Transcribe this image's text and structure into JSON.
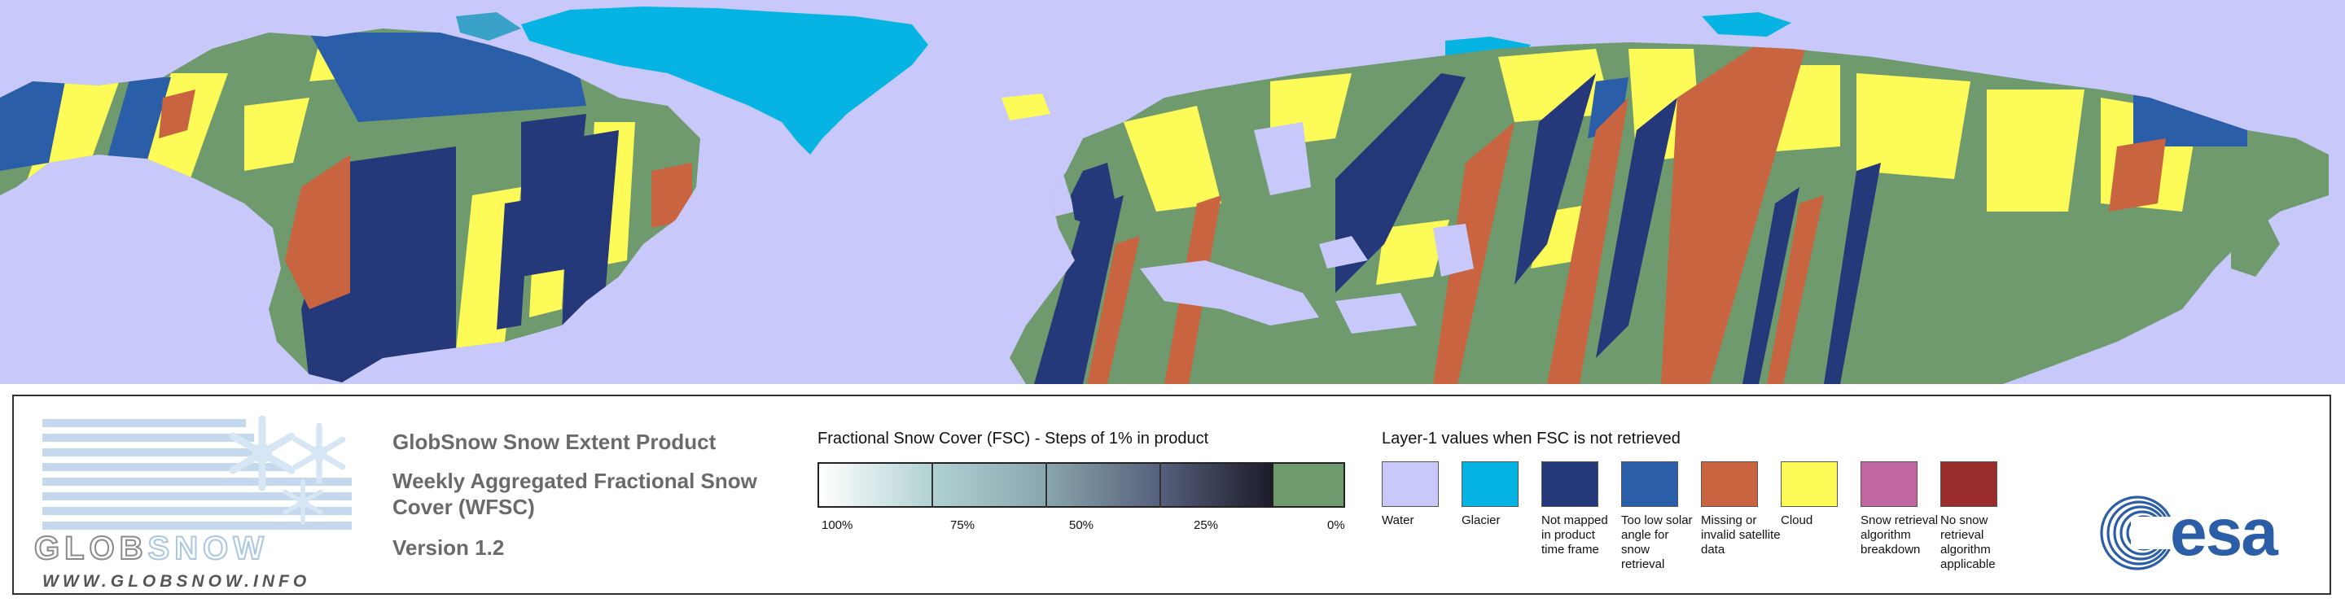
{
  "map": {
    "colors": {
      "water": "#c8c8fa",
      "glacier": "#06b4e4",
      "not_mapped": "#25387a",
      "low_solar": "#2a5ea8",
      "missing": "#c96440",
      "cloud": "#fdfb58",
      "breakdown": "#c066a0",
      "no_snow_applicable": "#9a2c2c",
      "snow_free": "#6f9a6e"
    }
  },
  "logo": {
    "wordmark_glob": "GLOB",
    "wordmark_snow": "SNOW",
    "url": "WWW.GLOBSNOW.INFO"
  },
  "product": {
    "title": "GlobSnow Snow Extent Product",
    "subtitle": "Weekly Aggregated Fractional Snow Cover (WFSC)",
    "version": "Version 1.2"
  },
  "fsc_legend": {
    "title": "Fractional Snow Cover (FSC) - Steps of 1% in product",
    "ticks": [
      "100%",
      "75%",
      "50%",
      "25%",
      "0%"
    ]
  },
  "layer1_legend": {
    "title": "Layer-1 values when FSC is not retrieved",
    "items": [
      {
        "label": "Water",
        "color": "#c8c8fa"
      },
      {
        "label": "Glacier",
        "color": "#06b4e4"
      },
      {
        "label": "Not mapped in product time frame",
        "color": "#25387a"
      },
      {
        "label": "Too low solar angle for snow retrieval",
        "color": "#2a5ea8"
      },
      {
        "label": "Missing or invalid satellite data",
        "color": "#c96440"
      },
      {
        "label": "Cloud",
        "color": "#fdfb58"
      },
      {
        "label": "Snow retrieval algorithm breakdown",
        "color": "#c066a0"
      },
      {
        "label": "No snow retrieval algorithm applicable",
        "color": "#9a2c2c"
      }
    ]
  },
  "esa": {
    "wordmark": "esa"
  }
}
